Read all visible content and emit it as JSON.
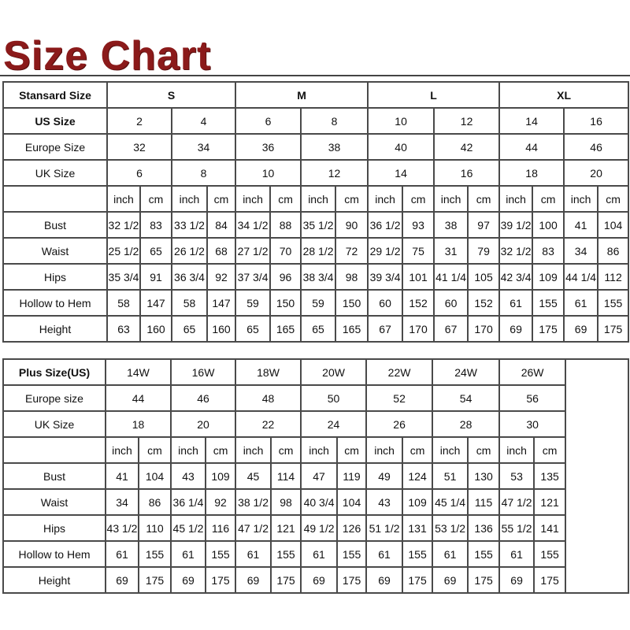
{
  "title": "Size Chart",
  "colors": {
    "title": "#8b1a1a",
    "grid": "#4a4a4a"
  },
  "standard": {
    "header_label": "Stansard Size",
    "groups": [
      "S",
      "M",
      "L",
      "XL"
    ],
    "us_label": "US Size",
    "us": [
      "2",
      "4",
      "6",
      "8",
      "10",
      "12",
      "14",
      "16"
    ],
    "europe_label": "Europe Size",
    "europe": [
      "32",
      "34",
      "36",
      "38",
      "40",
      "42",
      "44",
      "46"
    ],
    "uk_label": "UK Size",
    "uk": [
      "6",
      "8",
      "10",
      "12",
      "14",
      "16",
      "18",
      "20"
    ],
    "units": [
      "inch",
      "cm"
    ],
    "measurements": [
      {
        "label": "Bust",
        "values": [
          "32 1/2",
          "83",
          "33 1/2",
          "84",
          "34 1/2",
          "88",
          "35 1/2",
          "90",
          "36 1/2",
          "93",
          "38",
          "97",
          "39 1/2",
          "100",
          "41",
          "104"
        ]
      },
      {
        "label": "Waist",
        "values": [
          "25 1/2",
          "65",
          "26 1/2",
          "68",
          "27 1/2",
          "70",
          "28 1/2",
          "72",
          "29 1/2",
          "75",
          "31",
          "79",
          "32 1/2",
          "83",
          "34",
          "86"
        ]
      },
      {
        "label": "Hips",
        "values": [
          "35 3/4",
          "91",
          "36 3/4",
          "92",
          "37 3/4",
          "96",
          "38 3/4",
          "98",
          "39 3/4",
          "101",
          "41 1/4",
          "105",
          "42 3/4",
          "109",
          "44 1/4",
          "112"
        ]
      },
      {
        "label": "Hollow to Hem",
        "values": [
          "58",
          "147",
          "58",
          "147",
          "59",
          "150",
          "59",
          "150",
          "60",
          "152",
          "60",
          "152",
          "61",
          "155",
          "61",
          "155"
        ]
      },
      {
        "label": "Height",
        "values": [
          "63",
          "160",
          "65",
          "160",
          "65",
          "165",
          "65",
          "165",
          "67",
          "170",
          "67",
          "170",
          "69",
          "175",
          "69",
          "175"
        ]
      }
    ]
  },
  "plus": {
    "header_label": "Plus Size(US)",
    "sizes": [
      "14W",
      "16W",
      "18W",
      "20W",
      "22W",
      "24W",
      "26W"
    ],
    "europe_label": "Europe size",
    "europe": [
      "44",
      "46",
      "48",
      "50",
      "52",
      "54",
      "56"
    ],
    "uk_label": "UK Size",
    "uk": [
      "18",
      "20",
      "22",
      "24",
      "26",
      "28",
      "30"
    ],
    "units": [
      "inch",
      "cm"
    ],
    "measurements": [
      {
        "label": "Bust",
        "values": [
          "41",
          "104",
          "43",
          "109",
          "45",
          "114",
          "47",
          "119",
          "49",
          "124",
          "51",
          "130",
          "53",
          "135"
        ]
      },
      {
        "label": "Waist",
        "values": [
          "34",
          "86",
          "36 1/4",
          "92",
          "38 1/2",
          "98",
          "40 3/4",
          "104",
          "43",
          "109",
          "45 1/4",
          "115",
          "47 1/2",
          "121"
        ]
      },
      {
        "label": "Hips",
        "values": [
          "43 1/2",
          "110",
          "45 1/2",
          "116",
          "47 1/2",
          "121",
          "49 1/2",
          "126",
          "51 1/2",
          "131",
          "53 1/2",
          "136",
          "55 1/2",
          "141"
        ]
      },
      {
        "label": "Hollow to Hem",
        "values": [
          "61",
          "155",
          "61",
          "155",
          "61",
          "155",
          "61",
          "155",
          "61",
          "155",
          "61",
          "155",
          "61",
          "155"
        ]
      },
      {
        "label": "Height",
        "values": [
          "69",
          "175",
          "69",
          "175",
          "69",
          "175",
          "69",
          "175",
          "69",
          "175",
          "69",
          "175",
          "69",
          "175"
        ]
      }
    ]
  }
}
